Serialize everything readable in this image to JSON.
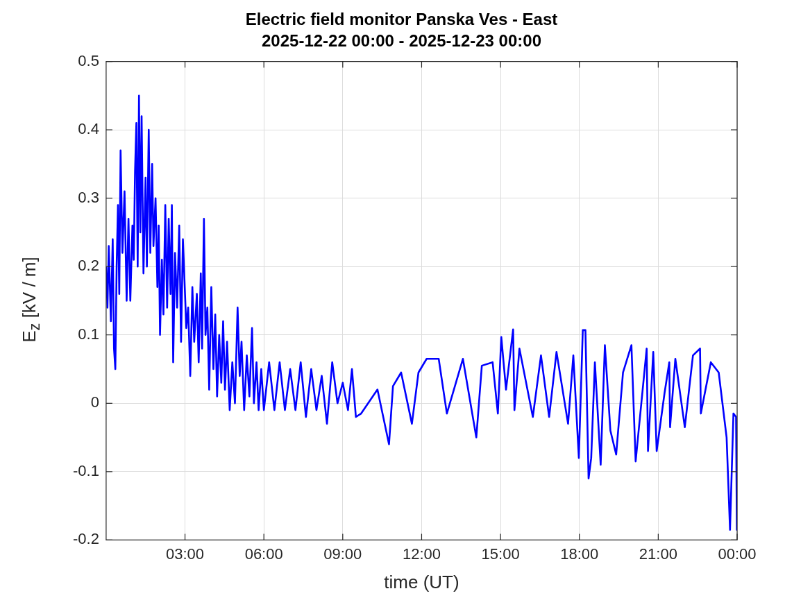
{
  "chart_data": {
    "type": "line",
    "title": "Electric field monitor Panska Ves - East",
    "subtitle": "2025-12-22 00:00 - 2025-12-23 00:00",
    "xlabel": "time (UT)",
    "ylabel": "E$_{z}$ [kV / m]",
    "xlim": [
      0,
      24
    ],
    "xticks": [
      {
        "value": 3,
        "label": "03:00"
      },
      {
        "value": 6,
        "label": "06:00"
      },
      {
        "value": 9,
        "label": "09:00"
      },
      {
        "value": 12,
        "label": "12:00"
      },
      {
        "value": 15,
        "label": "15:00"
      },
      {
        "value": 18,
        "label": "18:00"
      },
      {
        "value": 21,
        "label": "21:00"
      },
      {
        "value": 24,
        "label": "00:00"
      }
    ],
    "ylim": [
      -0.2,
      0.5
    ],
    "yticks": [
      -0.2,
      -0.1,
      0,
      0.1,
      0.2,
      0.3,
      0.4,
      0.5
    ],
    "grid": true,
    "legend": false,
    "marker": "none",
    "line_style": "solid",
    "series": [
      {
        "color": "#0000ff",
        "x": [
          0,
          0.05,
          0.1,
          0.18,
          0.25,
          0.3,
          0.35,
          0.4,
          0.45,
          0.5,
          0.55,
          0.62,
          0.7,
          0.78,
          0.85,
          0.92,
          1,
          1.05,
          1.1,
          1.15,
          1.2,
          1.25,
          1.3,
          1.35,
          1.42,
          1.5,
          1.55,
          1.62,
          1.68,
          1.75,
          1.8,
          1.88,
          1.95,
          2,
          2.05,
          2.12,
          2.18,
          2.25,
          2.32,
          2.38,
          2.45,
          2.5,
          2.55,
          2.62,
          2.7,
          2.78,
          2.85,
          2.92,
          3,
          3.05,
          3.12,
          3.2,
          3.28,
          3.35,
          3.45,
          3.52,
          3.6,
          3.65,
          3.72,
          3.78,
          3.85,
          3.92,
          4,
          4.08,
          4.15,
          4.22,
          4.3,
          4.38,
          4.45,
          4.52,
          4.6,
          4.7,
          4.8,
          4.9,
          5,
          5.08,
          5.15,
          5.25,
          5.35,
          5.45,
          5.55,
          5.62,
          5.72,
          5.8,
          5.9,
          6,
          6.2,
          6.4,
          6.6,
          6.8,
          7,
          7.2,
          7.4,
          7.6,
          7.8,
          8,
          8.2,
          8.4,
          8.6,
          8.8,
          9,
          9.2,
          9.35,
          9.5,
          9.7,
          10.32,
          10.76,
          10.91,
          11.22,
          11.63,
          11.88,
          12.19,
          12.65,
          12.96,
          13.57,
          14.08,
          14.29,
          14.7,
          14.9,
          15.03,
          15.21,
          15.48,
          15.53,
          15.72,
          16.23,
          16.54,
          16.85,
          17.13,
          17.57,
          17.77,
          17.98,
          18.13,
          18.23,
          18.35,
          18.45,
          18.59,
          18.81,
          18.97,
          19.18,
          19.4,
          19.66,
          19.98,
          20.14,
          20.56,
          20.61,
          20.81,
          20.94,
          21.24,
          21.42,
          21.45,
          21.65,
          22.01,
          22.32,
          22.59,
          22.62,
          23,
          23.3,
          23.6,
          23.73,
          23.86,
          23.96,
          23.99,
          24
        ],
        "values": [
          0.2,
          0.14,
          0.23,
          0.12,
          0.24,
          0.08,
          0.05,
          0.2,
          0.29,
          0.16,
          0.37,
          0.22,
          0.31,
          0.15,
          0.27,
          0.15,
          0.26,
          0.21,
          0.34,
          0.41,
          0.2,
          0.45,
          0.25,
          0.42,
          0.19,
          0.33,
          0.2,
          0.4,
          0.22,
          0.35,
          0.23,
          0.3,
          0.17,
          0.26,
          0.1,
          0.21,
          0.13,
          0.29,
          0.14,
          0.27,
          0.16,
          0.29,
          0.06,
          0.22,
          0.14,
          0.26,
          0.09,
          0.24,
          0.16,
          0.11,
          0.14,
          0.04,
          0.17,
          0.09,
          0.16,
          0.06,
          0.19,
          0.08,
          0.27,
          0.1,
          0.14,
          0.02,
          0.17,
          0.05,
          0.13,
          0.01,
          0.1,
          0.03,
          0.12,
          0.02,
          0.09,
          -0.01,
          0.06,
          0,
          0.14,
          0.04,
          0.09,
          -0.01,
          0.07,
          0.01,
          0.11,
          0,
          0.06,
          -0.01,
          0.05,
          -0.01,
          0.06,
          -0.01,
          0.06,
          -0.01,
          0.05,
          -0.01,
          0.06,
          -0.02,
          0.05,
          -0.01,
          0.04,
          -0.03,
          0.06,
          0,
          0.03,
          -0.01,
          0.05,
          -0.02,
          -0.015,
          0.02,
          -0.06,
          0.025,
          0.045,
          -0.03,
          0.045,
          0.065,
          0.065,
          -0.015,
          0.065,
          -0.05,
          0.055,
          0.06,
          -0.015,
          0.097,
          0.02,
          0.108,
          -0.01,
          0.08,
          -0.02,
          0.07,
          -0.02,
          0.075,
          -0.03,
          0.07,
          -0.08,
          0.107,
          0.107,
          -0.11,
          -0.08,
          0.06,
          -0.09,
          0.085,
          -0.04,
          -0.075,
          0.045,
          0.085,
          -0.085,
          0.08,
          -0.07,
          0.075,
          -0.07,
          0.015,
          0.06,
          -0.035,
          0.065,
          -0.035,
          0.07,
          0.08,
          -0.015,
          0.06,
          0.045,
          -0.05,
          -0.185,
          -0.015,
          -0.02,
          -0.185,
          -0.16
        ]
      }
    ]
  }
}
